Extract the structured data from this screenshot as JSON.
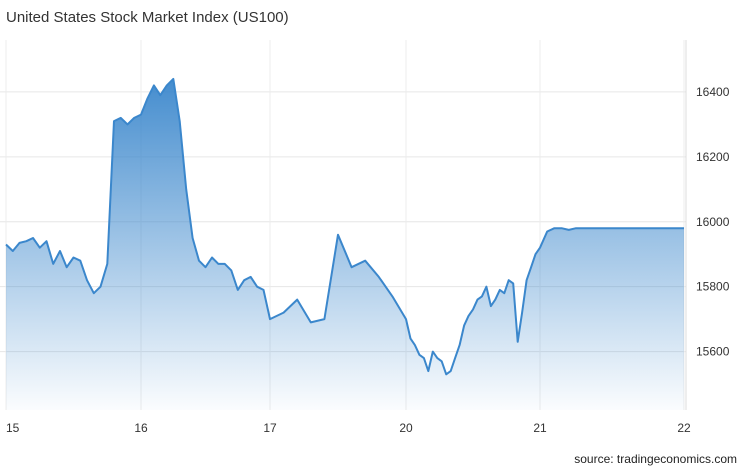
{
  "chart_data": {
    "type": "area",
    "title": "United States Stock Market Index (US100)",
    "xlabel": "",
    "ylabel": "",
    "x_ticks": [
      "15",
      "16",
      "17",
      "20",
      "21",
      "22"
    ],
    "y_ticks": [
      15600,
      15800,
      16000,
      16200,
      16400
    ],
    "ylim": [
      15420,
      16560
    ],
    "grid": true,
    "series": [
      {
        "name": "",
        "color": "#3b87cc",
        "x": [
          15.0,
          15.05,
          15.1,
          15.15,
          15.2,
          15.25,
          15.3,
          15.35,
          15.4,
          15.45,
          15.5,
          15.55,
          15.6,
          15.65,
          15.7,
          15.75,
          15.8,
          15.85,
          15.9,
          15.95,
          16.0,
          16.05,
          16.1,
          16.15,
          16.2,
          16.25,
          16.3,
          16.35,
          16.4,
          16.45,
          16.5,
          16.55,
          16.6,
          16.65,
          16.7,
          16.75,
          16.8,
          16.85,
          16.9,
          16.95,
          17.0,
          17.1,
          17.2,
          17.3,
          17.4,
          17.5,
          17.6,
          17.7,
          17.8,
          17.9,
          18.0,
          18.1,
          18.2,
          18.3,
          18.4,
          18.5,
          18.6,
          18.7,
          18.8,
          18.9,
          19.0,
          19.1,
          19.2,
          19.3,
          19.4,
          19.5,
          19.6,
          19.7,
          19.8,
          19.9,
          20.0,
          20.1,
          20.2,
          20.3,
          20.4,
          20.5,
          20.6,
          20.7,
          20.8,
          20.9,
          21.0,
          21.05,
          21.1,
          21.15,
          21.2,
          21.25,
          21.3,
          21.35,
          21.4,
          21.45,
          21.5,
          21.55,
          21.6,
          21.65,
          21.7,
          21.75,
          21.8,
          21.85,
          21.9,
          21.95,
          22.0
        ],
        "values": [
          15930,
          15910,
          15935,
          15940,
          15950,
          15920,
          15940,
          15870,
          15910,
          15860,
          15890,
          15880,
          15820,
          15780,
          15800,
          15870,
          16310,
          16320,
          16300,
          16320,
          16330,
          16380,
          16420,
          16390,
          16420,
          16440,
          16310,
          16100,
          15950,
          15880,
          15860,
          15890,
          15870,
          15870,
          15850,
          15790,
          15820,
          15830,
          15800,
          15790,
          15700,
          15720,
          15760,
          15690,
          15700,
          15960,
          15860,
          15880,
          15830,
          15770,
          15700,
          15640,
          15620,
          15590,
          15580,
          15540,
          15600,
          15580,
          15570,
          15530,
          15540,
          15580,
          15620,
          15680,
          15710,
          15730,
          15760,
          15770,
          15800,
          15740,
          15760,
          15790,
          15780,
          15820,
          15810,
          15630,
          15720,
          15820,
          15860,
          15900,
          15920,
          15970,
          15980,
          15980,
          15975,
          15980,
          15980,
          15980,
          15980,
          15980,
          15980,
          15980,
          15980,
          15980,
          15980,
          15980,
          15980,
          15980,
          15980,
          15980,
          15980
        ]
      }
    ]
  },
  "source": "source: tradingeconomics.com"
}
